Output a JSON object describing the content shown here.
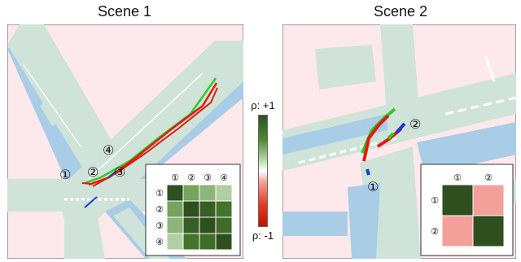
{
  "titles": [
    "Scene 1",
    "Scene 2"
  ],
  "colorbar": {
    "top_label": "ρ: +1",
    "bottom_label": "ρ: -1",
    "colors": [
      "#2f4f1f",
      "#4f8a33",
      "#ffffff",
      "#e83a26",
      "#c01400"
    ]
  },
  "scene1": {
    "markers": [
      "①",
      "②",
      "③",
      "④"
    ],
    "matrix": {
      "row_labels": [
        "①",
        "②",
        "③",
        "④"
      ],
      "col_labels": [
        "①",
        "②",
        "③",
        "④"
      ],
      "values": [
        [
          1.0,
          0.45,
          0.35,
          0.2
        ],
        [
          0.45,
          1.0,
          0.9,
          0.75
        ],
        [
          0.35,
          0.9,
          1.0,
          0.8
        ],
        [
          0.2,
          0.75,
          0.8,
          1.0
        ]
      ]
    }
  },
  "scene2": {
    "markers": [
      "①",
      "②"
    ],
    "matrix": {
      "row_labels": [
        "①",
        "②"
      ],
      "col_labels": [
        "①",
        "②"
      ],
      "values": [
        [
          1.0,
          -0.3
        ],
        [
          -0.3,
          1.0
        ]
      ]
    }
  },
  "colors": {
    "background": "#fde9ec",
    "road": "#cfe3d9",
    "lane": "#a9cde6",
    "white_line": "#ffffff",
    "traj_green": "#2ecc1f",
    "traj_red": "#e01a12",
    "traj_blue": "#1a3ad6"
  }
}
